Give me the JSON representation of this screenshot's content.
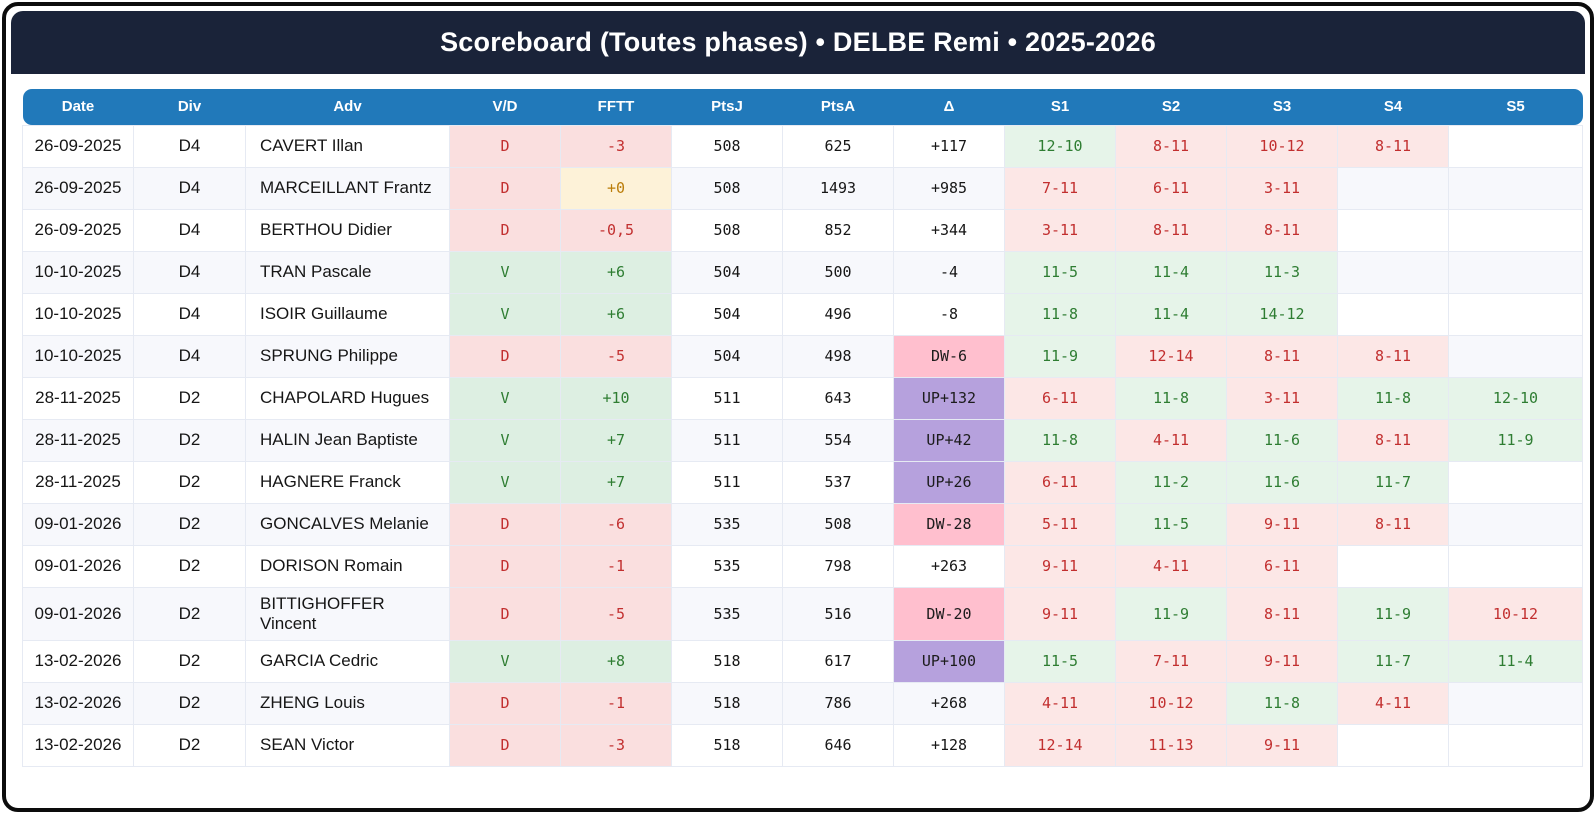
{
  "title": "Scoreboard (Toutes phases) • DELBE Remi • 2025-2026",
  "columns": [
    "Date",
    "Div",
    "Adv",
    "V/D",
    "FFTT",
    "PtsJ",
    "PtsA",
    "Δ",
    "S1",
    "S2",
    "S3",
    "S4",
    "S5"
  ],
  "colors": {
    "titlebar_bg": "#1a2339",
    "header_bg": "#2179ba",
    "win_bg": "#ddefe2",
    "win_text": "#2e7d32",
    "lose_bg": "#fadfdf",
    "lose_text": "#c22f2f",
    "zero_bg": "#fdf2d8",
    "zero_text": "#bb7d0a",
    "up_bg": "#b6a1dd",
    "down_bg": "#ffbfce",
    "row_stripe": "#f7f8fc"
  },
  "rows": [
    {
      "date": "26-09-2025",
      "division": "D4",
      "adversary": "CAVERT Illan",
      "result": "D",
      "fftt": "-3",
      "fftt_type": "lose",
      "pts_j": "508",
      "pts_a": "625",
      "delta": "+117",
      "delta_type": "plain",
      "sets": [
        {
          "score": "12-10",
          "won": true
        },
        {
          "score": "8-11",
          "won": false
        },
        {
          "score": "10-12",
          "won": false
        },
        {
          "score": "8-11",
          "won": false
        },
        null
      ]
    },
    {
      "date": "26-09-2025",
      "division": "D4",
      "adversary": "MARCEILLANT Frantz",
      "result": "D",
      "fftt": "+0",
      "fftt_type": "zero",
      "pts_j": "508",
      "pts_a": "1493",
      "delta": "+985",
      "delta_type": "plain",
      "sets": [
        {
          "score": "7-11",
          "won": false
        },
        {
          "score": "6-11",
          "won": false
        },
        {
          "score": "3-11",
          "won": false
        },
        null,
        null
      ]
    },
    {
      "date": "26-09-2025",
      "division": "D4",
      "adversary": "BERTHOU Didier",
      "result": "D",
      "fftt": "-0,5",
      "fftt_type": "lose",
      "pts_j": "508",
      "pts_a": "852",
      "delta": "+344",
      "delta_type": "plain",
      "sets": [
        {
          "score": "3-11",
          "won": false
        },
        {
          "score": "8-11",
          "won": false
        },
        {
          "score": "8-11",
          "won": false
        },
        null,
        null
      ]
    },
    {
      "date": "10-10-2025",
      "division": "D4",
      "adversary": "TRAN Pascale",
      "result": "V",
      "fftt": "+6",
      "fftt_type": "win",
      "pts_j": "504",
      "pts_a": "500",
      "delta": "-4",
      "delta_type": "plain",
      "sets": [
        {
          "score": "11-5",
          "won": true
        },
        {
          "score": "11-4",
          "won": true
        },
        {
          "score": "11-3",
          "won": true
        },
        null,
        null
      ]
    },
    {
      "date": "10-10-2025",
      "division": "D4",
      "adversary": "ISOIR Guillaume",
      "result": "V",
      "fftt": "+6",
      "fftt_type": "win",
      "pts_j": "504",
      "pts_a": "496",
      "delta": "-8",
      "delta_type": "plain",
      "sets": [
        {
          "score": "11-8",
          "won": true
        },
        {
          "score": "11-4",
          "won": true
        },
        {
          "score": "14-12",
          "won": true
        },
        null,
        null
      ]
    },
    {
      "date": "10-10-2025",
      "division": "D4",
      "adversary": "SPRUNG Philippe",
      "result": "D",
      "fftt": "-5",
      "fftt_type": "lose",
      "pts_j": "504",
      "pts_a": "498",
      "delta": "DW-6",
      "delta_type": "down",
      "sets": [
        {
          "score": "11-9",
          "won": true
        },
        {
          "score": "12-14",
          "won": false
        },
        {
          "score": "8-11",
          "won": false
        },
        {
          "score": "8-11",
          "won": false
        },
        null
      ]
    },
    {
      "date": "28-11-2025",
      "division": "D2",
      "adversary": "CHAPOLARD Hugues",
      "result": "V",
      "fftt": "+10",
      "fftt_type": "win",
      "pts_j": "511",
      "pts_a": "643",
      "delta": "UP+132",
      "delta_type": "up",
      "sets": [
        {
          "score": "6-11",
          "won": false
        },
        {
          "score": "11-8",
          "won": true
        },
        {
          "score": "3-11",
          "won": false
        },
        {
          "score": "11-8",
          "won": true
        },
        {
          "score": "12-10",
          "won": true
        }
      ]
    },
    {
      "date": "28-11-2025",
      "division": "D2",
      "adversary": "HALIN Jean Baptiste",
      "result": "V",
      "fftt": "+7",
      "fftt_type": "win",
      "pts_j": "511",
      "pts_a": "554",
      "delta": "UP+42",
      "delta_type": "up",
      "sets": [
        {
          "score": "11-8",
          "won": true
        },
        {
          "score": "4-11",
          "won": false
        },
        {
          "score": "11-6",
          "won": true
        },
        {
          "score": "8-11",
          "won": false
        },
        {
          "score": "11-9",
          "won": true
        }
      ]
    },
    {
      "date": "28-11-2025",
      "division": "D2",
      "adversary": "HAGNERE Franck",
      "result": "V",
      "fftt": "+7",
      "fftt_type": "win",
      "pts_j": "511",
      "pts_a": "537",
      "delta": "UP+26",
      "delta_type": "up",
      "sets": [
        {
          "score": "6-11",
          "won": false
        },
        {
          "score": "11-2",
          "won": true
        },
        {
          "score": "11-6",
          "won": true
        },
        {
          "score": "11-7",
          "won": true
        },
        null
      ]
    },
    {
      "date": "09-01-2026",
      "division": "D2",
      "adversary": "GONCALVES Melanie",
      "result": "D",
      "fftt": "-6",
      "fftt_type": "lose",
      "pts_j": "535",
      "pts_a": "508",
      "delta": "DW-28",
      "delta_type": "down",
      "sets": [
        {
          "score": "5-11",
          "won": false
        },
        {
          "score": "11-5",
          "won": true
        },
        {
          "score": "9-11",
          "won": false
        },
        {
          "score": "8-11",
          "won": false
        },
        null
      ]
    },
    {
      "date": "09-01-2026",
      "division": "D2",
      "adversary": "DORISON Romain",
      "result": "D",
      "fftt": "-1",
      "fftt_type": "lose",
      "pts_j": "535",
      "pts_a": "798",
      "delta": "+263",
      "delta_type": "plain",
      "sets": [
        {
          "score": "9-11",
          "won": false
        },
        {
          "score": "4-11",
          "won": false
        },
        {
          "score": "6-11",
          "won": false
        },
        null,
        null
      ]
    },
    {
      "date": "09-01-2026",
      "division": "D2",
      "adversary": "BITTIGHOFFER Vincent",
      "result": "D",
      "fftt": "-5",
      "fftt_type": "lose",
      "pts_j": "535",
      "pts_a": "516",
      "delta": "DW-20",
      "delta_type": "down",
      "sets": [
        {
          "score": "9-11",
          "won": false
        },
        {
          "score": "11-9",
          "won": true
        },
        {
          "score": "8-11",
          "won": false
        },
        {
          "score": "11-9",
          "won": true
        },
        {
          "score": "10-12",
          "won": false
        }
      ]
    },
    {
      "date": "13-02-2026",
      "division": "D2",
      "adversary": "GARCIA Cedric",
      "result": "V",
      "fftt": "+8",
      "fftt_type": "win",
      "pts_j": "518",
      "pts_a": "617",
      "delta": "UP+100",
      "delta_type": "up",
      "sets": [
        {
          "score": "11-5",
          "won": true
        },
        {
          "score": "7-11",
          "won": false
        },
        {
          "score": "9-11",
          "won": false
        },
        {
          "score": "11-7",
          "won": true
        },
        {
          "score": "11-4",
          "won": true
        }
      ]
    },
    {
      "date": "13-02-2026",
      "division": "D2",
      "adversary": "ZHENG Louis",
      "result": "D",
      "fftt": "-1",
      "fftt_type": "lose",
      "pts_j": "518",
      "pts_a": "786",
      "delta": "+268",
      "delta_type": "plain",
      "sets": [
        {
          "score": "4-11",
          "won": false
        },
        {
          "score": "10-12",
          "won": false
        },
        {
          "score": "11-8",
          "won": true
        },
        {
          "score": "4-11",
          "won": false
        },
        null
      ]
    },
    {
      "date": "13-02-2026",
      "division": "D2",
      "adversary": "SEAN Victor",
      "result": "D",
      "fftt": "-3",
      "fftt_type": "lose",
      "pts_j": "518",
      "pts_a": "646",
      "delta": "+128",
      "delta_type": "plain",
      "sets": [
        {
          "score": "12-14",
          "won": false
        },
        {
          "score": "11-13",
          "won": false
        },
        {
          "score": "9-11",
          "won": false
        },
        null,
        null
      ]
    }
  ]
}
